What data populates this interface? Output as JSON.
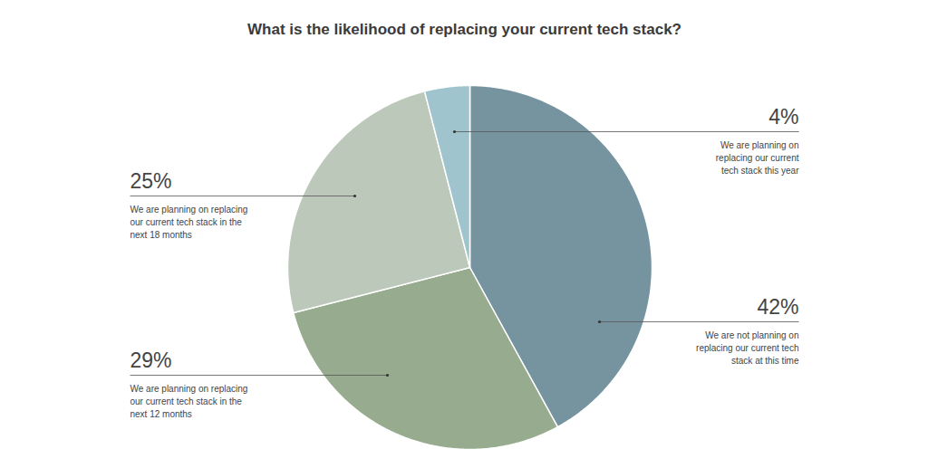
{
  "chart_data": {
    "type": "pie",
    "title": "What is the likelihood of replacing your current tech stack?",
    "categories": [
      "We are not planning on\nreplacing our current tech\nstack at this time",
      "We are planning on replacing\nour current tech stack in the\nnext 12 months",
      "We are planning on replacing\nour current tech stack in the\nnext 18 months",
      "We are planning on\nreplacing our current\ntech stack this year"
    ],
    "values": [
      42,
      29,
      25,
      4
    ],
    "value_labels": [
      "42%",
      "29%",
      "25%",
      "4%"
    ],
    "colors": [
      "#7693a0",
      "#97ab8f",
      "#bcc8ba",
      "#9fc4cd"
    ],
    "data_labels": true
  }
}
